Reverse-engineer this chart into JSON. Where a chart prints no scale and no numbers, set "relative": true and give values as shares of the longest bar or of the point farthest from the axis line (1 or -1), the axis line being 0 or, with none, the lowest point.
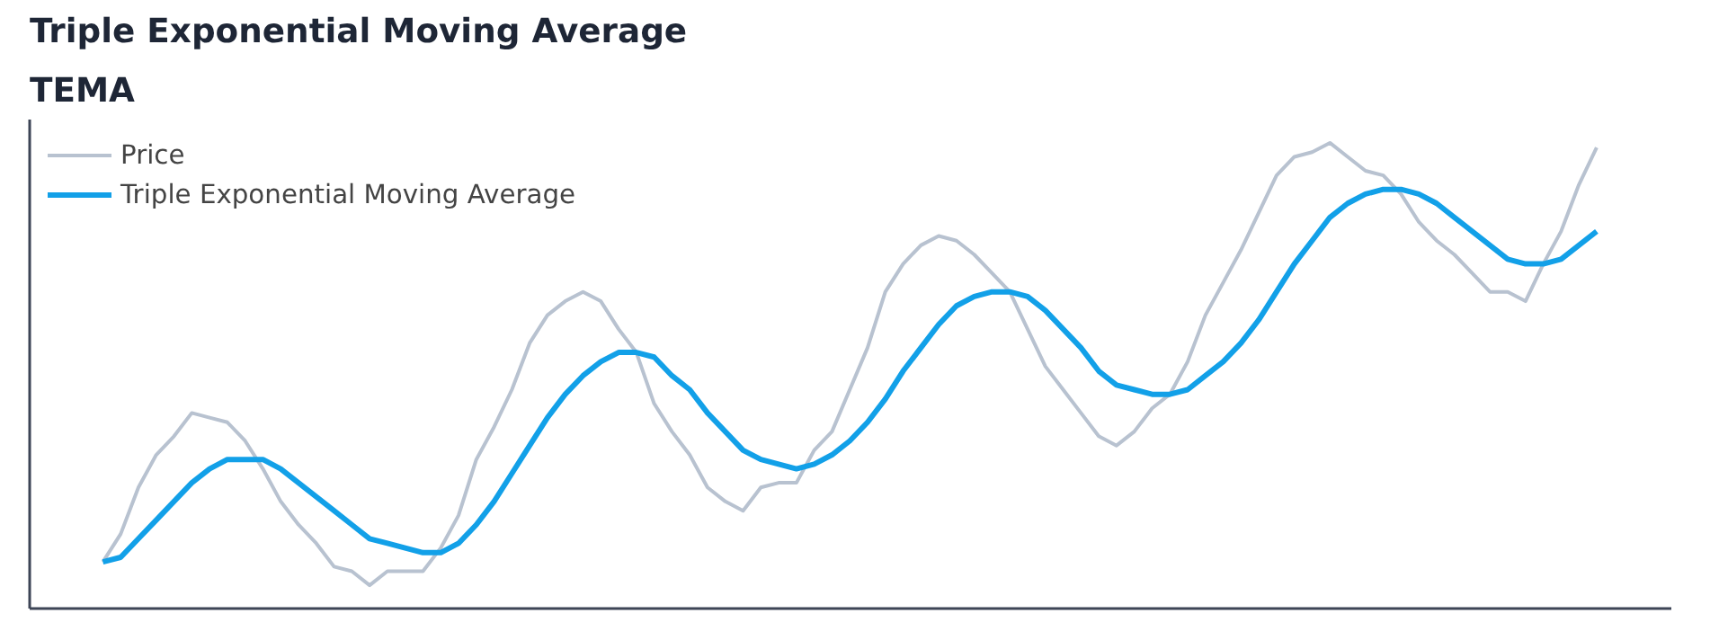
{
  "chart_data": {
    "type": "line",
    "title": "Triple Exponential Moving Average",
    "subtitle": "TEMA",
    "relative": true,
    "legend": "top left",
    "line_style": "solid",
    "categories": [
      null,
      null,
      null,
      null,
      null,
      null,
      null,
      null,
      null,
      null,
      null,
      null,
      null,
      null,
      null,
      null,
      null,
      null,
      null,
      null,
      null,
      null,
      null,
      null,
      null,
      null,
      null,
      null,
      null,
      null,
      null,
      null,
      null,
      null,
      null,
      null,
      null,
      null,
      null,
      null,
      null,
      null,
      null,
      null,
      null,
      null,
      null,
      null,
      null,
      null,
      null,
      null,
      null,
      null,
      null,
      null,
      null,
      null,
      null,
      null,
      null,
      null,
      null,
      null,
      null,
      null,
      null,
      null,
      null,
      null,
      null,
      null,
      null,
      null,
      null,
      null,
      null,
      null,
      null,
      null,
      null,
      null,
      null,
      null,
      null
    ],
    "series": [
      {
        "name": "Price",
        "color": "#b8c2d0",
        "values": [
          0.1,
          0.16,
          0.26,
          0.33,
          0.37,
          0.42,
          0.41,
          0.4,
          0.36,
          0.3,
          0.23,
          0.18,
          0.14,
          0.09,
          0.08,
          0.05,
          0.08,
          0.08,
          0.08,
          0.13,
          0.2,
          0.32,
          0.39,
          0.47,
          0.57,
          0.63,
          0.66,
          0.68,
          0.66,
          0.6,
          0.55,
          0.44,
          0.38,
          0.33,
          0.26,
          0.23,
          0.21,
          0.26,
          0.27,
          0.27,
          0.34,
          0.38,
          0.47,
          0.56,
          0.68,
          0.74,
          0.78,
          0.8,
          0.79,
          0.76,
          0.72,
          0.68,
          0.6,
          0.52,
          0.47,
          0.42,
          0.37,
          0.35,
          0.38,
          0.43,
          0.46,
          0.53,
          0.63,
          0.7,
          0.77,
          0.85,
          0.93,
          0.97,
          0.98,
          1,
          0.97,
          0.94,
          0.93,
          0.89,
          0.83,
          0.79,
          0.76,
          0.72,
          0.68,
          0.68,
          0.66,
          0.74,
          0.81,
          0.91,
          0.99
        ]
      },
      {
        "name": "Triple Exponential Moving Average",
        "color": "#12a0e8",
        "values": [
          0.1,
          0.11,
          0.15,
          0.19,
          0.23,
          0.27,
          0.3,
          0.32,
          0.32,
          0.32,
          0.3,
          0.27,
          0.24,
          0.21,
          0.18,
          0.15,
          0.14,
          0.13,
          0.12,
          0.12,
          0.14,
          0.18,
          0.23,
          0.29,
          0.35,
          0.41,
          0.46,
          0.5,
          0.53,
          0.55,
          0.55,
          0.54,
          0.5,
          0.47,
          0.42,
          0.38,
          0.34,
          0.32,
          0.31,
          0.3,
          0.31,
          0.33,
          0.36,
          0.4,
          0.45,
          0.51,
          0.56,
          0.61,
          0.65,
          0.67,
          0.68,
          0.68,
          0.67,
          0.64,
          0.6,
          0.56,
          0.51,
          0.48,
          0.47,
          0.46,
          0.46,
          0.47,
          0.5,
          0.53,
          0.57,
          0.62,
          0.68,
          0.74,
          0.79,
          0.84,
          0.87,
          0.89,
          0.9,
          0.9,
          0.89,
          0.87,
          0.84,
          0.81,
          0.78,
          0.75,
          0.74,
          0.74,
          0.75,
          0.78,
          0.81
        ]
      }
    ]
  }
}
